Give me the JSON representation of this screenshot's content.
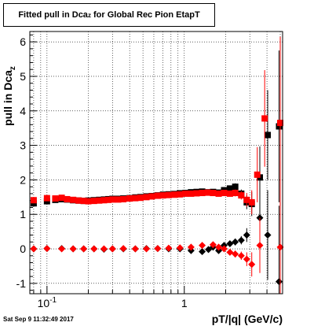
{
  "chart_data": {
    "type": "scatter",
    "title": {
      "main": "Fitted pull in Dca",
      "subscript": "z",
      "suffix": " for Global Rec Pion EtapT"
    },
    "ylabel": {
      "main": "pull in Dca",
      "subscript": "z"
    },
    "xlabel": "pT/|q| (GeV/c)",
    "xscale": "log",
    "xlim": [
      0.075,
      5.2
    ],
    "ylim": [
      -1.3,
      6.3
    ],
    "x_tick_labels": [
      {
        "value": 0.1,
        "base": "10",
        "exponent": "-1"
      },
      {
        "value": 1,
        "base": "1",
        "exponent": ""
      }
    ],
    "y_tick_labels": [
      "-1",
      "0",
      "1",
      "2",
      "3",
      "4",
      "5",
      "6"
    ],
    "grid": true,
    "series": [
      {
        "color": "#000000",
        "marker": "square",
        "x": [
          0.08,
          0.1,
          0.115,
          0.128,
          0.14,
          0.155,
          0.17,
          0.185,
          0.2,
          0.22,
          0.24,
          0.26,
          0.28,
          0.3,
          0.33,
          0.36,
          0.4,
          0.44,
          0.48,
          0.53,
          0.58,
          0.64,
          0.7,
          0.77,
          0.85,
          0.93,
          1.02,
          1.12,
          1.23,
          1.35,
          1.48,
          1.62,
          1.78,
          1.95,
          2.15,
          2.35,
          2.6,
          2.85,
          3.1,
          3.55,
          4.05,
          4.9
        ],
        "y": [
          1.32,
          1.38,
          1.42,
          1.44,
          1.43,
          1.41,
          1.4,
          1.39,
          1.4,
          1.41,
          1.42,
          1.43,
          1.44,
          1.45,
          1.45,
          1.46,
          1.47,
          1.49,
          1.5,
          1.52,
          1.53,
          1.55,
          1.57,
          1.58,
          1.59,
          1.61,
          1.62,
          1.64,
          1.65,
          1.66,
          1.64,
          1.65,
          1.63,
          1.7,
          1.75,
          1.8,
          1.6,
          1.35,
          1.3,
          2.07,
          3.3,
          3.55
        ],
        "y_err": [
          0.03,
          0.02,
          0.02,
          0.02,
          0.02,
          0.02,
          0.02,
          0.02,
          0.02,
          0.02,
          0.02,
          0.02,
          0.02,
          0.02,
          0.02,
          0.02,
          0.02,
          0.02,
          0.02,
          0.02,
          0.02,
          0.02,
          0.02,
          0.02,
          0.03,
          0.03,
          0.03,
          0.03,
          0.04,
          0.04,
          0.05,
          0.05,
          0.06,
          0.07,
          0.08,
          0.1,
          0.12,
          0.2,
          0.35,
          0.9,
          1.3,
          2.2
        ]
      },
      {
        "color": "#000000",
        "marker": "diamond",
        "x": [
          0.08,
          0.1,
          0.128,
          0.155,
          0.185,
          0.22,
          0.26,
          0.3,
          0.36,
          0.44,
          0.53,
          0.64,
          0.77,
          0.93,
          1.12,
          1.35,
          1.5,
          1.62,
          1.78,
          1.95,
          2.15,
          2.35,
          2.6,
          2.85,
          3.55,
          4.05,
          4.9
        ],
        "y": [
          0.0,
          0.01,
          0.01,
          0.0,
          0.0,
          0.0,
          -0.01,
          0.0,
          0.0,
          0.0,
          0.01,
          0.01,
          0.0,
          0.0,
          -0.05,
          -0.08,
          -0.02,
          0.05,
          -0.05,
          0.1,
          0.15,
          0.2,
          0.25,
          0.4,
          0.9,
          0.4,
          -0.95
        ],
        "y_err": [
          0.02,
          0.02,
          0.02,
          0.02,
          0.02,
          0.02,
          0.02,
          0.02,
          0.02,
          0.02,
          0.02,
          0.02,
          0.02,
          0.02,
          0.03,
          0.04,
          0.05,
          0.05,
          0.06,
          0.07,
          0.08,
          0.1,
          0.12,
          0.2,
          0.6,
          1.3,
          2.2
        ]
      },
      {
        "color": "#ff0000",
        "marker": "square",
        "x": [
          0.08,
          0.1,
          0.115,
          0.128,
          0.14,
          0.155,
          0.17,
          0.185,
          0.2,
          0.22,
          0.24,
          0.26,
          0.28,
          0.3,
          0.33,
          0.36,
          0.4,
          0.44,
          0.48,
          0.53,
          0.58,
          0.64,
          0.7,
          0.77,
          0.85,
          0.93,
          1.02,
          1.12,
          1.23,
          1.35,
          1.48,
          1.62,
          1.78,
          1.95,
          2.15,
          2.35,
          2.6,
          2.85,
          3.1,
          3.4,
          3.85,
          5.0
        ],
        "y": [
          1.41,
          1.47,
          1.46,
          1.48,
          1.44,
          1.42,
          1.4,
          1.39,
          1.38,
          1.39,
          1.4,
          1.41,
          1.42,
          1.43,
          1.43,
          1.44,
          1.46,
          1.47,
          1.48,
          1.5,
          1.52,
          1.54,
          1.55,
          1.56,
          1.57,
          1.58,
          1.6,
          1.6,
          1.61,
          1.62,
          1.63,
          1.62,
          1.6,
          1.62,
          1.6,
          1.62,
          1.55,
          1.42,
          1.35,
          2.15,
          3.78,
          3.65
        ],
        "y_err": [
          0.03,
          0.02,
          0.02,
          0.02,
          0.02,
          0.02,
          0.02,
          0.02,
          0.02,
          0.02,
          0.02,
          0.02,
          0.02,
          0.02,
          0.02,
          0.02,
          0.02,
          0.02,
          0.02,
          0.02,
          0.02,
          0.02,
          0.02,
          0.02,
          0.03,
          0.03,
          0.03,
          0.03,
          0.04,
          0.04,
          0.05,
          0.05,
          0.06,
          0.07,
          0.08,
          0.1,
          0.12,
          0.2,
          0.35,
          0.8,
          1.4,
          2.5
        ]
      },
      {
        "color": "#ff0000",
        "marker": "diamond",
        "x": [
          0.08,
          0.1,
          0.128,
          0.155,
          0.185,
          0.22,
          0.26,
          0.3,
          0.36,
          0.44,
          0.53,
          0.64,
          0.77,
          0.93,
          1.12,
          1.35,
          1.62,
          1.78,
          1.95,
          2.15,
          2.35,
          2.6,
          2.85,
          3.1,
          3.55,
          5.0
        ],
        "y": [
          0.0,
          0.01,
          0.0,
          0.0,
          0.0,
          0.0,
          0.0,
          0.0,
          0.01,
          0.0,
          0.0,
          0.01,
          0.02,
          0.03,
          0.05,
          0.1,
          0.12,
          0.05,
          0.0,
          -0.1,
          -0.15,
          -0.2,
          -0.3,
          -0.45,
          0.1,
          0.05
        ],
        "y_err": [
          0.02,
          0.02,
          0.02,
          0.02,
          0.02,
          0.02,
          0.02,
          0.02,
          0.02,
          0.02,
          0.02,
          0.02,
          0.02,
          0.02,
          0.03,
          0.04,
          0.05,
          0.06,
          0.07,
          0.08,
          0.1,
          0.12,
          0.2,
          0.35,
          0.8,
          2.5
        ]
      }
    ]
  },
  "timestamp": "Sat Sep  9 11:32:49 2017"
}
